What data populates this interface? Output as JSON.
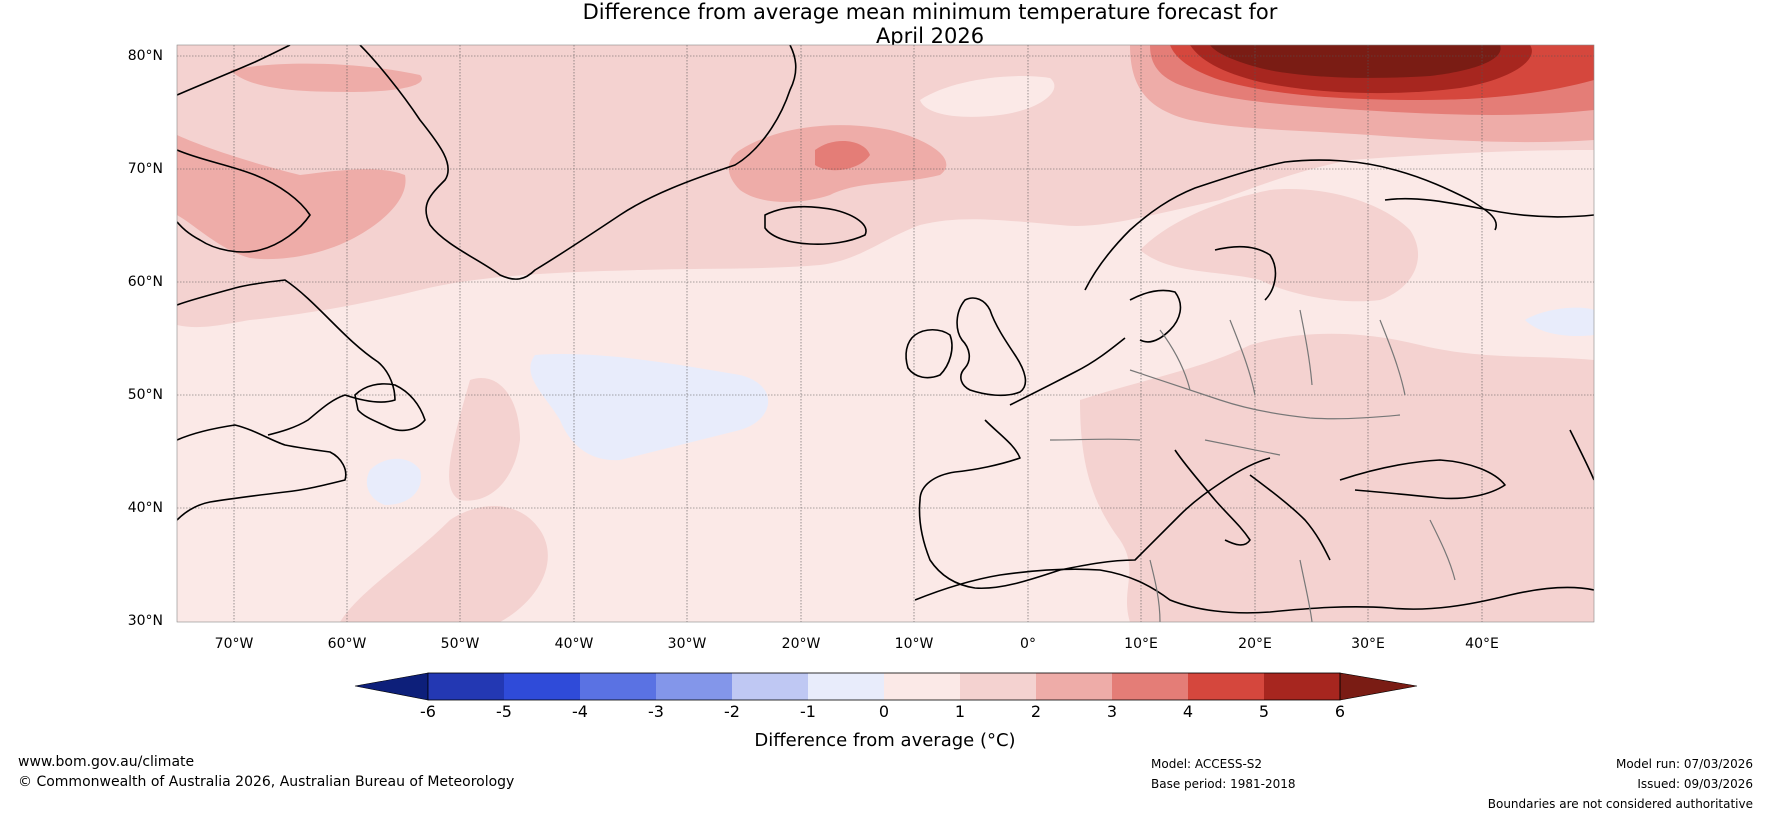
{
  "title": {
    "line1": "Difference from average mean minimum temperature forecast for",
    "line2": "April 2026"
  },
  "map": {
    "latitude_labels": [
      "80°N",
      "70°N",
      "60°N",
      "50°N",
      "40°N",
      "30°N"
    ],
    "longitude_labels": [
      "70°W",
      "60°W",
      "50°W",
      "40°W",
      "30°W",
      "20°W",
      "10°W",
      "0°",
      "10°E",
      "20°E",
      "30°E",
      "40°E"
    ]
  },
  "colorbar": {
    "tick_labels": [
      "-6",
      "-5",
      "-4",
      "-3",
      "-2",
      "-1",
      "0",
      "1",
      "2",
      "3",
      "4",
      "5",
      "6"
    ],
    "colors": [
      "#0d1f7a",
      "#2338b3",
      "#2f4bd9",
      "#5a72e3",
      "#8396ea",
      "#bfc8f3",
      "#e8ecfb",
      "#fbe9e7",
      "#f4d2d0",
      "#eeaca8",
      "#e47d77",
      "#d5473d",
      "#a7261f",
      "#7a1c14"
    ],
    "title": "Difference from average (°C)"
  },
  "footer": {
    "website": "www.bom.gov.au/climate",
    "copyright": "© Commonwealth of Australia 2026, Australian Bureau of Meteorology",
    "model": "Model: ACCESS-S2",
    "base_period": "Base period: 1981-2018",
    "model_run": "Model run: 07/03/2026",
    "issued": "Issued: 09/03/2026",
    "disclaimer": "Boundaries are not considered authoritative"
  }
}
